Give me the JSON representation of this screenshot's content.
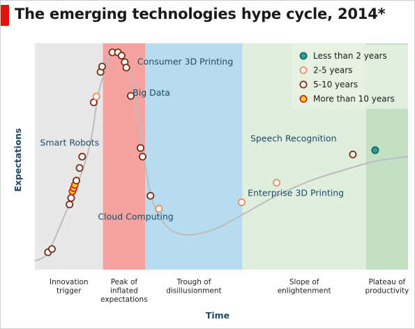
{
  "chart_data": {
    "type": "scatter",
    "title": "The emerging technologies hype cycle, 2014*",
    "xlabel": "Time",
    "ylabel": "Expectations",
    "phases": [
      {
        "lines": [
          "Innovation",
          "trigger"
        ],
        "from": 0.0,
        "to": 0.259,
        "color": "#e8e8e8"
      },
      {
        "lines": [
          "Peak of",
          "inflated",
          "expectations"
        ],
        "from": 0.259,
        "to": 0.42,
        "color": "#f4a3a0"
      },
      {
        "lines": [
          "Trough of",
          "disillusionment"
        ],
        "from": 0.42,
        "to": 0.79,
        "color": "#b8dcef"
      },
      {
        "lines": [
          "Slope of",
          "enlightenment"
        ],
        "from": 0.79,
        "to": 1.26,
        "color": "#e0efdd"
      },
      {
        "lines": [
          "Plateau of",
          "productivity"
        ],
        "from": 1.26,
        "to": 1.42,
        "color": "#c3e0c4"
      }
    ],
    "legend": {
      "position": "top-right",
      "entries": [
        {
          "label": "Less than 2 years",
          "fill": "#2aa198",
          "stroke": "#106a64"
        },
        {
          "label": "2-5 years",
          "fill": "#ffffff",
          "stroke": "#ef8a62"
        },
        {
          "label": "5-10 years",
          "fill": "#ffffff",
          "stroke": "#7a2a12"
        },
        {
          "label": "More than 10 years",
          "fill": "#ffd21f",
          "stroke": "#d42020"
        }
      ]
    },
    "curve": [
      [
        0.0,
        0.04
      ],
      [
        0.05,
        0.08
      ],
      [
        0.12,
        0.27
      ],
      [
        0.17,
        0.42
      ],
      [
        0.2,
        0.53
      ],
      [
        0.22,
        0.64
      ],
      [
        0.24,
        0.8
      ],
      [
        0.26,
        0.89
      ],
      [
        0.28,
        0.97
      ],
      [
        0.3,
        1.0
      ],
      [
        0.32,
        1.0
      ],
      [
        0.34,
        0.98
      ],
      [
        0.36,
        0.93
      ],
      [
        0.38,
        0.83
      ],
      [
        0.4,
        0.66
      ],
      [
        0.42,
        0.48
      ],
      [
        0.44,
        0.35
      ],
      [
        0.47,
        0.25
      ],
      [
        0.52,
        0.18
      ],
      [
        0.58,
        0.16
      ],
      [
        0.64,
        0.17
      ],
      [
        0.71,
        0.2
      ],
      [
        0.8,
        0.26
      ],
      [
        0.92,
        0.34
      ],
      [
        1.05,
        0.41
      ],
      [
        1.18,
        0.46
      ],
      [
        1.3,
        0.5
      ],
      [
        1.42,
        0.52
      ]
    ],
    "points": [
      {
        "x": 0.05,
        "y": 0.08,
        "group": "5-10 years"
      },
      {
        "x": 0.065,
        "y": 0.095,
        "group": "5-10 years"
      },
      {
        "x": 0.132,
        "y": 0.3,
        "group": "5-10 years"
      },
      {
        "x": 0.138,
        "y": 0.33,
        "group": "5-10 years"
      },
      {
        "x": 0.143,
        "y": 0.36,
        "group": "More than 10 years"
      },
      {
        "x": 0.148,
        "y": 0.375,
        "group": "More than 10 years"
      },
      {
        "x": 0.152,
        "y": 0.39,
        "group": "More than 10 years"
      },
      {
        "x": 0.158,
        "y": 0.41,
        "group": "5-10 years"
      },
      {
        "x": 0.17,
        "y": 0.468,
        "group": "5-10 years"
      },
      {
        "x": 0.18,
        "y": 0.52,
        "group": "5-10 years"
      },
      {
        "x": 0.224,
        "y": 0.77,
        "group": "5-10 years"
      },
      {
        "x": 0.234,
        "y": 0.797,
        "group": "2-5 years"
      },
      {
        "x": 0.25,
        "y": 0.91,
        "group": "5-10 years"
      },
      {
        "x": 0.256,
        "y": 0.935,
        "group": "5-10 years"
      },
      {
        "x": 0.295,
        "y": 1.0,
        "group": "5-10 years"
      },
      {
        "x": 0.316,
        "y": 1.0,
        "group": "5-10 years"
      },
      {
        "x": 0.33,
        "y": 0.985,
        "group": "5-10 years"
      },
      {
        "x": 0.342,
        "y": 0.955,
        "group": "5-10 years"
      },
      {
        "x": 0.348,
        "y": 0.93,
        "group": "5-10 years"
      },
      {
        "x": 0.365,
        "y": 0.8,
        "group": "5-10 years"
      },
      {
        "x": 0.402,
        "y": 0.56,
        "group": "5-10 years"
      },
      {
        "x": 0.41,
        "y": 0.52,
        "group": "5-10 years"
      },
      {
        "x": 0.44,
        "y": 0.34,
        "group": "5-10 years"
      },
      {
        "x": 0.472,
        "y": 0.28,
        "group": "2-5 years"
      },
      {
        "x": 0.787,
        "y": 0.31,
        "group": "2-5 years"
      },
      {
        "x": 0.92,
        "y": 0.4,
        "group": "2-5 years"
      },
      {
        "x": 1.21,
        "y": 0.53,
        "group": "5-10 years"
      },
      {
        "x": 1.295,
        "y": 0.55,
        "group": "Less than 2 years"
      }
    ],
    "annotations": [
      {
        "text": "Consumer 3D Printing",
        "x": 0.39,
        "y": 0.944
      },
      {
        "text": "Big Data",
        "x": 0.372,
        "y": 0.8
      },
      {
        "text": "Smart Robots",
        "x": 0.02,
        "y": 0.57
      },
      {
        "text": "Cloud Computing",
        "x": 0.24,
        "y": 0.23
      },
      {
        "text": "Speech Recognition",
        "x": 0.82,
        "y": 0.59
      },
      {
        "text": "Enterprise 3D Printing",
        "x": 0.81,
        "y": 0.34
      }
    ]
  }
}
